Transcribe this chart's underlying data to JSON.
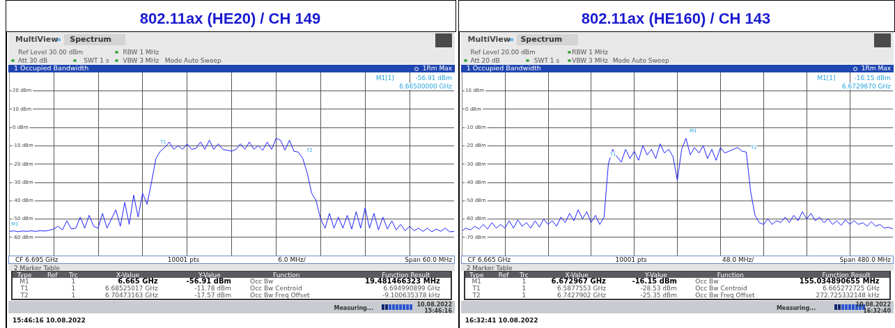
{
  "chart_data": [
    {
      "type": "line",
      "title": "802.11ax (HE20) / CH 149",
      "categories": [
        null,
        null,
        null,
        null,
        null,
        null,
        null,
        null,
        null,
        null,
        null,
        null,
        null,
        null,
        null,
        null,
        null,
        null,
        null,
        null,
        null,
        null,
        null,
        null,
        null,
        null,
        null,
        null,
        null,
        null,
        null,
        null,
        null,
        null,
        null,
        null,
        null,
        null,
        null,
        null,
        null,
        null,
        null,
        null,
        null,
        null,
        null,
        null,
        null,
        null,
        null,
        null,
        null,
        null,
        null,
        null,
        null,
        null,
        null,
        null,
        null,
        null,
        null,
        null,
        null,
        null,
        null,
        null,
        null,
        null,
        null,
        null,
        null,
        null,
        null,
        null,
        null,
        null,
        null,
        null,
        null,
        null,
        null,
        null,
        null,
        null,
        null,
        null,
        null,
        null,
        null,
        null,
        null,
        null,
        null,
        null,
        null,
        null,
        null,
        null,
        null
      ],
      "series": [
        {
          "color": "#1f1fff",
          "values": [
            -56.9,
            -56.5,
            -57,
            -56.6,
            -56.8,
            -56.5,
            -56.8,
            -56.4,
            -56.6,
            -56.2,
            -55.5,
            -54,
            -56,
            -51,
            -55.5,
            -55,
            -49,
            -55,
            -48,
            -54,
            -55,
            -47,
            -55,
            -50,
            -45,
            -54,
            -41,
            -53,
            -37,
            -49,
            -36,
            -42,
            -30,
            -17,
            -13,
            -11,
            -8,
            -12,
            -10,
            -12,
            -9,
            -12,
            -11.5,
            -8,
            -12,
            -7,
            -12,
            -9,
            -12,
            -12.5,
            -13,
            -12,
            -9,
            -12,
            -8,
            -12,
            -10,
            -12.5,
            -8,
            -12,
            -6,
            -7,
            -12.5,
            -7,
            -13,
            -13.5,
            -17,
            -25,
            -36,
            -40,
            -50,
            -55,
            -47,
            -55,
            -49,
            -55,
            -48,
            -55.5,
            -46,
            -55,
            -44,
            -55,
            -47,
            -56,
            -49,
            -55.5,
            -51,
            -56,
            -53,
            -56.5,
            -54,
            -56.5,
            -55,
            -56.8,
            -55,
            -57,
            -55.5,
            -56.8,
            -55,
            -57,
            -56.9
          ]
        }
      ],
      "ylim": [
        -70,
        30
      ],
      "yticks": [
        {
          "value": -60,
          "label": "-60 dBm"
        },
        {
          "value": -50,
          "label": "-50 dBm"
        },
        {
          "value": -40,
          "label": "-40 dBm"
        },
        {
          "value": -30,
          "label": "-30 dBm"
        },
        {
          "value": -20,
          "label": "-20 dBm"
        },
        {
          "value": -10,
          "label": "-10 dBm"
        },
        {
          "value": 0,
          "label": "0 dBm"
        },
        {
          "value": 10,
          "label": "10 dBm"
        },
        {
          "value": 20,
          "label": "20 dBm"
        }
      ],
      "grid": true,
      "annotations": [
        "MultiView",
        "Spectrum",
        "Ref Level 30.00 dBm",
        "RBW 1 MHz",
        "Att 30 dB",
        "SWT 1 s",
        "VBW 3 MHz",
        "Mode Auto Sweep",
        "1 Occupied Bandwidth",
        "1Rm Max",
        "M1[1]",
        "-56.91 dBm",
        "6.66500000 GHz",
        "CF 6.695 GHz",
        "10001 pts",
        "6.0 MHz/",
        "Span 60.0 MHz",
        "2 Marker Table",
        "Type",
        "Ref",
        "Trc",
        "X-Value",
        "Y-Value",
        "Function",
        "Function Result",
        "M1",
        "1",
        "6.665 GHz",
        "-56.91 dBm",
        "Occ Bw",
        "19.481466323 MHz",
        "T1",
        "1",
        "6.68525017 GHz",
        "-11.78 dBm",
        "Occ Bw Centroid",
        "6.694990899 GHz",
        "T2",
        "1",
        "6.70473163 GHz",
        "-17.57 dBm",
        "Occ Bw Freq Offset",
        "-9.100635378 kHz",
        "Measuring...",
        "10.08.2022",
        "15:46:16",
        "15:46:16  10.08.2022",
        "M1",
        "T1",
        "T2"
      ]
    },
    {
      "type": "line",
      "title": "802.11ax (HE160) / CH 143",
      "categories": [
        null,
        null,
        null,
        null,
        null,
        null,
        null,
        null,
        null,
        null,
        null,
        null,
        null,
        null,
        null,
        null,
        null,
        null,
        null,
        null,
        null,
        null,
        null,
        null,
        null,
        null,
        null,
        null,
        null,
        null,
        null,
        null,
        null,
        null,
        null,
        null,
        null,
        null,
        null,
        null,
        null,
        null,
        null,
        null,
        null,
        null,
        null,
        null,
        null,
        null,
        null,
        null,
        null,
        null,
        null,
        null,
        null,
        null,
        null,
        null,
        null,
        null,
        null,
        null,
        null,
        null,
        null,
        null,
        null,
        null,
        null,
        null,
        null,
        null,
        null,
        null,
        null,
        null,
        null,
        null,
        null,
        null,
        null,
        null,
        null,
        null,
        null,
        null,
        null,
        null,
        null,
        null,
        null,
        null,
        null,
        null,
        null,
        null,
        null,
        null,
        null
      ],
      "series": [
        {
          "color": "#1f1fff",
          "values": [
            -66.5,
            -65,
            -66,
            -64,
            -65.5,
            -63,
            -65.5,
            -62,
            -65,
            -63,
            -65,
            -61,
            -65,
            -60.5,
            -64,
            -62,
            -65,
            -61,
            -64.5,
            -60,
            -63,
            -61,
            -64,
            -59,
            -62,
            -57,
            -61,
            -55,
            -60,
            -56,
            -62,
            -58,
            -63,
            -59,
            -30,
            -22,
            -26,
            -29,
            -22,
            -27,
            -23,
            -28,
            -20,
            -25,
            -22,
            -27,
            -19,
            -24,
            -22,
            -26,
            -39,
            -22,
            -16,
            -25,
            -21,
            -24,
            -20,
            -27,
            -22,
            -28,
            -21,
            -24,
            -23,
            -22,
            -21,
            -23,
            -23.5,
            -45,
            -58,
            -62,
            -63,
            -60,
            -63,
            -61,
            -62,
            -59,
            -62,
            -58,
            -61,
            -56,
            -60,
            -57,
            -61,
            -59,
            -62,
            -60,
            -63,
            -61,
            -63.5,
            -60.5,
            -63,
            -61,
            -63,
            -62,
            -64,
            -61.5,
            -64,
            -63,
            -65,
            -64.5,
            -65.5
          ]
        }
      ],
      "ylim": [
        -80,
        20
      ],
      "yticks": [
        {
          "value": -70,
          "label": "-70 dBm"
        },
        {
          "value": -60,
          "label": "-60 dBm"
        },
        {
          "value": -50,
          "label": "-50 dBm"
        },
        {
          "value": -40,
          "label": "-40 dBm"
        },
        {
          "value": -30,
          "label": "-30 dBm"
        },
        {
          "value": -20,
          "label": "-20 dBm"
        },
        {
          "value": -10,
          "label": "-10 dBm"
        },
        {
          "value": 0,
          "label": "0 dBm"
        },
        {
          "value": 10,
          "label": "10 dBm"
        }
      ],
      "grid": true,
      "annotations": [
        "MultiView",
        "Spectrum",
        "Ref Level 20.00 dBm",
        "RBW 1 MHz",
        "Att 20 dB",
        "SWT 1 s",
        "VBW 3 MHz",
        "Mode Auto Sweep",
        "1 Occupied Bandwidth",
        "1Rm Max",
        "M1[1]",
        "-16.15 dBm",
        "6.6729670 GHz",
        "CF 6.665 GHz",
        "10001 pts",
        "48.0 MHz/",
        "Span 480.0 MHz",
        "2 Marker Table",
        "Type",
        "Ref",
        "Trc",
        "X-Value",
        "Y-Value",
        "Function",
        "Function Result",
        "M1",
        "1",
        "6.672967 GHz",
        "-16.15 dBm",
        "Occ Bw",
        "155.034890655 MHz",
        "T1",
        "1",
        "6.5877553 GHz",
        "-28.53 dBm",
        "Occ Bw Centroid",
        "6.665272725 GHz",
        "T2",
        "1",
        "6.7427902 GHz",
        "-25.35 dBm",
        "Occ Bw Freq Offset",
        "272.725332148 kHz",
        "Measuring...",
        "10.08.2022",
        "16:32:40",
        "16:32:41  10.08.2022",
        "M1",
        "T1",
        "T2"
      ]
    }
  ]
}
